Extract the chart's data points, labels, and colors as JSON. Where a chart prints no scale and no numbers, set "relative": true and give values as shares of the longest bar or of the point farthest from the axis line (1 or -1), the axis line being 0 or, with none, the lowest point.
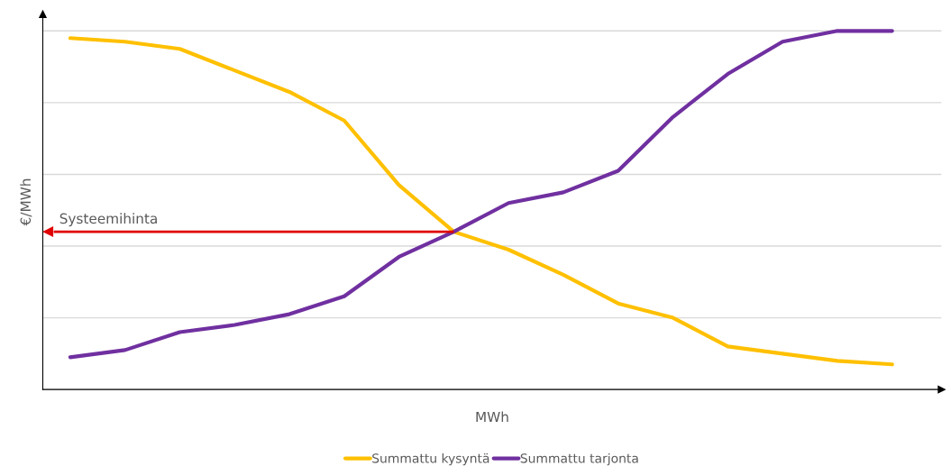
{
  "chart_data": {
    "type": "line",
    "relative": true,
    "xlabel": "MWh",
    "ylabel": "€/MWh",
    "categories": [
      null,
      null,
      null,
      null,
      null,
      null,
      null,
      null,
      null,
      null,
      null,
      null,
      null,
      null,
      null,
      null
    ],
    "series": [
      {
        "name": "Summattu kysyntä",
        "color": "#ffc000",
        "values": [
          0.98,
          0.97,
          0.95,
          0.89,
          0.83,
          0.75,
          0.57,
          0.44,
          0.39,
          0.32,
          0.24,
          0.2,
          0.12,
          0.1,
          0.08,
          0.07
        ]
      },
      {
        "name": "Summattu tarjonta",
        "color": "#7030a0",
        "values": [
          0.09,
          0.11,
          0.16,
          0.18,
          0.21,
          0.26,
          0.37,
          0.44,
          0.52,
          0.55,
          0.61,
          0.76,
          0.88,
          0.97,
          1,
          1
        ]
      }
    ],
    "ref_lines": [
      {
        "axis": "y",
        "value": 0.44,
        "label": "Systeemihinta",
        "color": "#e00000"
      }
    ],
    "grid": "y",
    "legend": "bottom",
    "line_style": "solid",
    "marker": "none"
  }
}
